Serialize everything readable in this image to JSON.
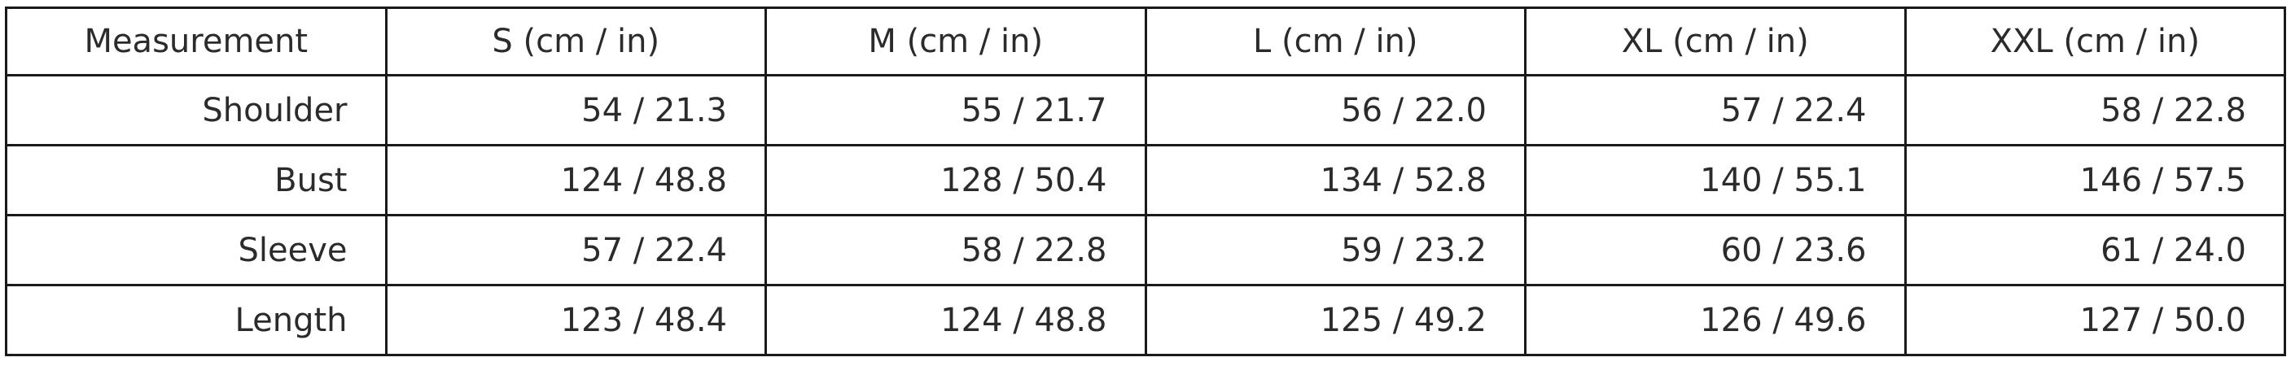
{
  "table": {
    "header": [
      "Measurement",
      "S (cm / in)",
      "M (cm / in)",
      "L (cm / in)",
      "XL (cm / in)",
      "XXL (cm / in)"
    ],
    "rows": [
      [
        "Shoulder",
        "54 / 21.3",
        "55 / 21.7",
        "56 / 22.0",
        "57 / 22.4",
        "58 / 22.8"
      ],
      [
        "Bust",
        "124 / 48.8",
        "128 / 50.4",
        "134 / 52.8",
        "140 / 55.1",
        "146 / 57.5"
      ],
      [
        "Sleeve",
        "57 / 22.4",
        "58 / 22.8",
        "59 / 23.2",
        "60 / 23.6",
        "61 / 24.0"
      ],
      [
        "Length",
        "123 / 48.4",
        "124 / 48.8",
        "125 / 49.2",
        "126 / 49.6",
        "127 / 50.0"
      ]
    ]
  }
}
